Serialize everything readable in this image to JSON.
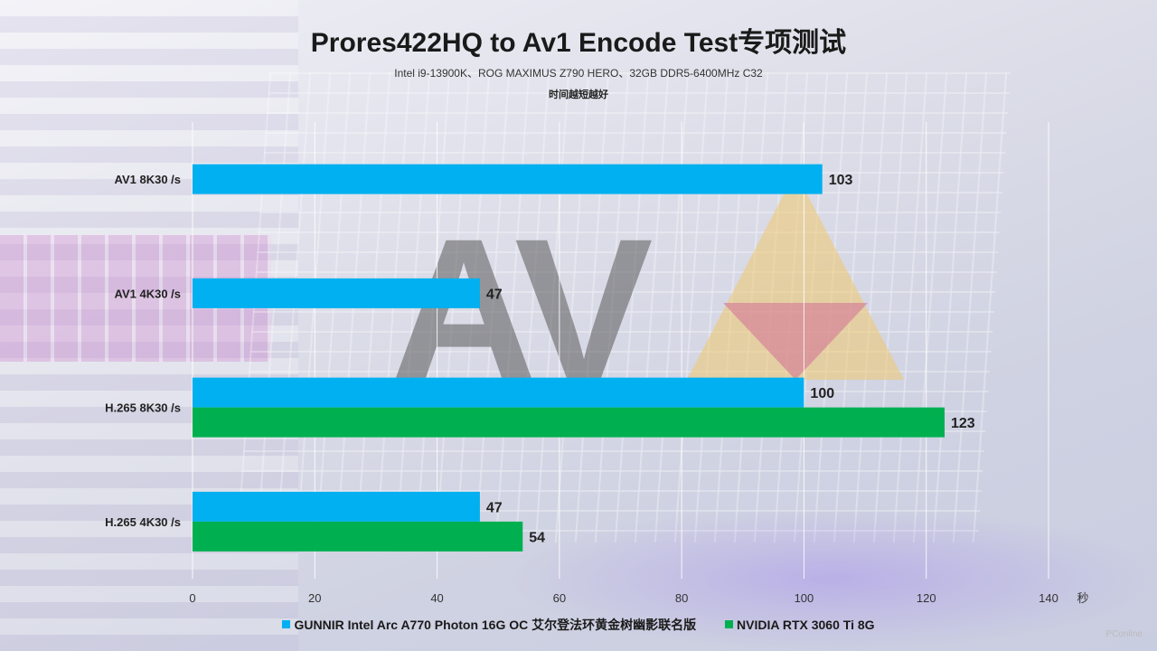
{
  "title": "Prores422HQ to Av1 Encode Test专项测试",
  "subtitle": "Intel i9-13900K、ROG  MAXIMUS Z790 HERO、32GB DDR5-6400MHz  C32",
  "note": "时间越短越好",
  "watermark": "PConline",
  "chart_data": {
    "type": "bar",
    "orientation": "horizontal",
    "categories": [
      "AV1 8K30 /s",
      "AV1 4K30 /s",
      "H.265 8K30 /s",
      "H.265 4K30 /s"
    ],
    "series": [
      {
        "name": "GUNNIR Intel Arc A770 Photon 16G OC 艾尔登法环黄金树幽影联名版",
        "color": "#00b0f0",
        "values": [
          103,
          47,
          100,
          47
        ]
      },
      {
        "name": "NVIDIA RTX 3060 Ti 8G",
        "color": "#00b050",
        "values": [
          null,
          null,
          123,
          54
        ]
      }
    ],
    "x_ticks": [
      "0",
      "20",
      "40",
      "60",
      "80",
      "100",
      "120",
      "140"
    ],
    "xlabel": "秒",
    "xlim": [
      0,
      140
    ],
    "grid": true,
    "legend_position": "bottom"
  }
}
